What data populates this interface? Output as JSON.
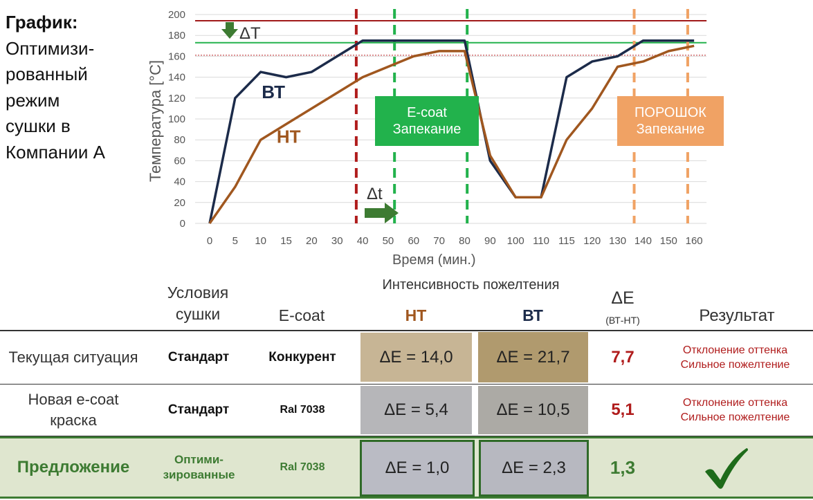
{
  "side_title": {
    "bold": "График:",
    "lines": [
      "Оптимизи-",
      "рованный",
      "режим",
      "сушки в",
      "Компании А"
    ]
  },
  "chart_data": {
    "type": "line",
    "xlabel": "Время (мин.)",
    "ylabel": "Температура [°C]",
    "categories": [
      "0",
      "5",
      "10",
      "15",
      "20",
      "30",
      "40",
      "50",
      "60",
      "70",
      "80",
      "90",
      "100",
      "110",
      "115",
      "120",
      "130",
      "140",
      "150",
      "160"
    ],
    "ylim": [
      0,
      200
    ],
    "yticks": [
      0,
      20,
      40,
      60,
      80,
      100,
      120,
      140,
      160,
      180,
      200
    ],
    "series": [
      {
        "name": "ВТ",
        "color": "#1c2b4a",
        "values": [
          0,
          120,
          145,
          140,
          145,
          160,
          175,
          175,
          175,
          175,
          175,
          60,
          25,
          25,
          140,
          155,
          160,
          175,
          175,
          175
        ],
        "label_at": 2.5,
        "label_val": 120
      },
      {
        "name": "НТ",
        "color": "#a0571f",
        "values": [
          0,
          35,
          80,
          95,
          110,
          125,
          140,
          150,
          160,
          165,
          165,
          65,
          25,
          25,
          80,
          110,
          150,
          155,
          165,
          170
        ],
        "label_at": 3.1,
        "label_val": 77
      }
    ],
    "hlines": [
      {
        "value": 194,
        "color": "#a01818",
        "width": 2
      },
      {
        "value": 173,
        "color": "#22b24c",
        "width": 2
      },
      {
        "value": 161,
        "color": "#c0282b",
        "width": 1,
        "dashed": true
      }
    ],
    "vlines": [
      {
        "at": 5.75,
        "color": "#b01c1c"
      },
      {
        "at": 7.25,
        "color": "#22b24c"
      },
      {
        "at": 10.1,
        "color": "#22b24c"
      },
      {
        "at": 16.65,
        "color": "#f0a264"
      },
      {
        "at": 18.75,
        "color": "#f0a264"
      }
    ],
    "annotations": {
      "delta_T": "ΔT",
      "delta_t": "Δt"
    },
    "boxes": [
      {
        "lines": [
          "E-coat",
          "Запекание"
        ],
        "color": "#22b24c"
      },
      {
        "lines": [
          "ПОРОШОК",
          "Запекание"
        ],
        "color": "#f0a264"
      }
    ]
  },
  "table": {
    "header_top": "Интенсивность пожелтения",
    "columns": {
      "conditions": "Условия сушки",
      "ecoat": "E-coat",
      "nt": "НТ",
      "vt": "ВТ",
      "de": "ΔE",
      "de_sub": "(ВТ-НТ)",
      "result": "Результат"
    },
    "rows": [
      {
        "label": "Текущая ситуация",
        "cond": "Стандарт",
        "ecoat": "Конкурент",
        "nt": "ΔE = 14,0",
        "vt": "ΔE = 21,7",
        "de": "7,7",
        "result1": "Отклонение оттенка",
        "result2": "Сильное пожелтение",
        "nt_color": "#c7b595",
        "vt_color": "#b09a6e"
      },
      {
        "label": "Новая e-coat краска",
        "cond": "Стандарт",
        "ecoat": "Ral 7038",
        "nt": "ΔE = 5,4",
        "vt": "ΔE = 10,5",
        "de": "5,1",
        "result1": "Отклонение оттенка",
        "result2": "Сильное пожелтение",
        "nt_color": "#b6b6b9",
        "vt_color": "#acaaa5"
      },
      {
        "label": "Предложение",
        "cond": "Оптими- зированные",
        "ecoat": "Ral 7038",
        "nt": "ΔE = 1,0",
        "vt": "ΔE = 2,3",
        "de": "1,3",
        "result1": "",
        "result2": "",
        "nt_color": "#babbc4",
        "vt_color": "#b7b8c0"
      }
    ],
    "check_icon": "check-icon"
  }
}
